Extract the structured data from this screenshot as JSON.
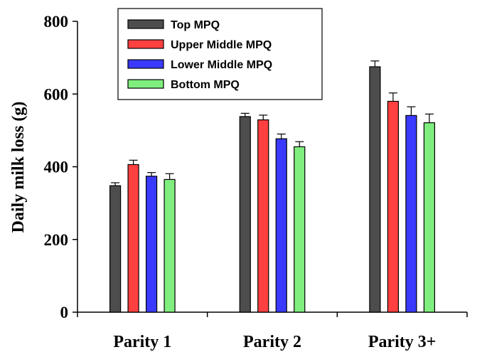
{
  "chart_data": {
    "type": "bar",
    "ylabel": "Daily milk loss (g)",
    "xlabel": "",
    "ylim": [
      0,
      800
    ],
    "yticks": [
      0,
      200,
      400,
      600,
      800
    ],
    "categories": [
      "Parity 1",
      "Parity 2",
      "Parity 3+"
    ],
    "series": [
      {
        "name": "Top MPQ",
        "color": "#4d4d4d",
        "values": [
          348,
          538,
          675
        ],
        "errors": [
          8,
          9,
          16
        ]
      },
      {
        "name": "Upper Middle MPQ",
        "color": "#ff4040",
        "values": [
          406,
          529,
          580
        ],
        "errors": [
          12,
          13,
          23
        ]
      },
      {
        "name": "Lower Middle MPQ",
        "color": "#3a3aff",
        "values": [
          374,
          477,
          541
        ],
        "errors": [
          10,
          13,
          24
        ]
      },
      {
        "name": "Bottom MPQ",
        "color": "#7fee7f",
        "values": [
          365,
          455,
          521
        ],
        "errors": [
          16,
          14,
          24
        ]
      }
    ],
    "legend": {
      "position": "top-left"
    },
    "grid": false
  }
}
